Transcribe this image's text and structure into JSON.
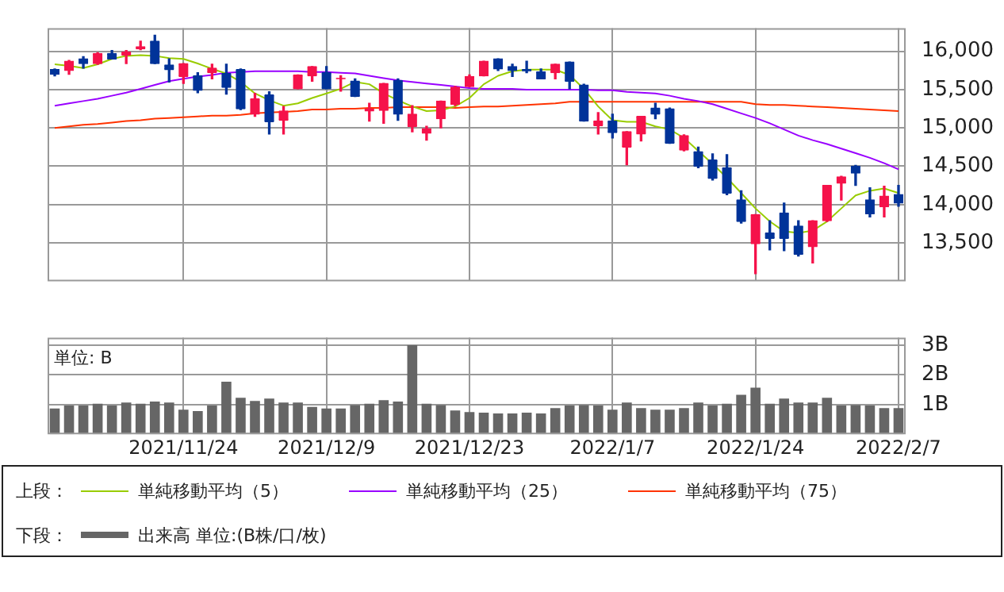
{
  "chart_data": [
    {
      "type": "candlestick",
      "legend_title": "上段：",
      "legend": "bottom",
      "grid": true,
      "tick_labels": "y",
      "marker": "none",
      "categories": [
        null,
        null,
        null,
        null,
        null,
        null,
        null,
        null,
        null,
        "2021/11/24",
        null,
        null,
        null,
        null,
        null,
        null,
        null,
        null,
        null,
        "2021/12/9",
        null,
        null,
        null,
        null,
        null,
        null,
        null,
        null,
        null,
        "2021/12/23",
        null,
        null,
        null,
        null,
        null,
        null,
        null,
        null,
        null,
        "2022/1/7",
        null,
        null,
        null,
        null,
        null,
        null,
        null,
        null,
        null,
        "2022/1/24",
        null,
        null,
        null,
        null,
        null,
        null,
        null,
        null,
        null,
        "2022/2/7"
      ],
      "ylim": [
        13000,
        16300
      ],
      "yticks": [
        {
          "value": 13500,
          "label": "13,500"
        },
        {
          "value": 14000,
          "label": "14,000"
        },
        {
          "value": 14500,
          "label": "14,500"
        },
        {
          "value": 15000,
          "label": "15,000"
        },
        {
          "value": 15500,
          "label": "15,500"
        },
        {
          "value": 16000,
          "label": "16,000"
        }
      ],
      "ohlc": [
        [
          15760,
          15770,
          15680,
          15700
        ],
        [
          15750,
          15880,
          15700,
          15870
        ],
        [
          15900,
          15930,
          15780,
          15840
        ],
        [
          15840,
          15980,
          15830,
          15970
        ],
        [
          15970,
          16010,
          15900,
          15900
        ],
        [
          15950,
          16010,
          15840,
          15990
        ],
        [
          16030,
          16130,
          16020,
          16060
        ],
        [
          16130,
          16210,
          15840,
          15840
        ],
        [
          15820,
          15900,
          15600,
          15760
        ],
        [
          15670,
          15840,
          15580,
          15840
        ],
        [
          15680,
          15720,
          15460,
          15490
        ],
        [
          15720,
          15830,
          15640,
          15780
        ],
        [
          15710,
          15830,
          15440,
          15530
        ],
        [
          15760,
          15770,
          15240,
          15250
        ],
        [
          15180,
          15450,
          15150,
          15380
        ],
        [
          15430,
          15470,
          14920,
          15080
        ],
        [
          15100,
          15280,
          14920,
          15220
        ],
        [
          15510,
          15690,
          15510,
          15690
        ],
        [
          15680,
          15800,
          15610,
          15800
        ],
        [
          15720,
          15800,
          15510,
          15510
        ],
        [
          15640,
          15680,
          15480,
          15650
        ],
        [
          15610,
          15640,
          15410,
          15410
        ],
        [
          15220,
          15320,
          15090,
          15250
        ],
        [
          15230,
          15580,
          15060,
          15580
        ],
        [
          15620,
          15640,
          15100,
          15180
        ],
        [
          15020,
          15290,
          14950,
          15180
        ],
        [
          14930,
          15020,
          14840,
          14990
        ],
        [
          15120,
          15350,
          15000,
          15350
        ],
        [
          15310,
          15540,
          15290,
          15530
        ],
        [
          15540,
          15690,
          15540,
          15670
        ],
        [
          15680,
          15870,
          15680,
          15870
        ],
        [
          15900,
          15900,
          15750,
          15770
        ],
        [
          15800,
          15830,
          15670,
          15750
        ],
        [
          15760,
          15870,
          15720,
          15740
        ],
        [
          15730,
          15770,
          15640,
          15640
        ],
        [
          15720,
          15830,
          15640,
          15830
        ],
        [
          15860,
          15860,
          15510,
          15610
        ],
        [
          15560,
          15570,
          15090,
          15090
        ],
        [
          15030,
          15200,
          14920,
          15090
        ],
        [
          15090,
          15180,
          14870,
          14940
        ],
        [
          14750,
          14950,
          14520,
          14950
        ],
        [
          14920,
          15150,
          14830,
          15150
        ],
        [
          15260,
          15320,
          15120,
          15180
        ],
        [
          15250,
          15260,
          14800,
          14800
        ],
        [
          14710,
          14910,
          14700,
          14900
        ],
        [
          14690,
          14750,
          14480,
          14500
        ],
        [
          14580,
          14660,
          14320,
          14340
        ],
        [
          14480,
          14650,
          14130,
          14150
        ],
        [
          14060,
          14180,
          13760,
          13780
        ],
        [
          13490,
          13870,
          13100,
          13870
        ],
        [
          13630,
          13790,
          13410,
          13560
        ],
        [
          13890,
          14020,
          13400,
          13560
        ],
        [
          13720,
          13790,
          13330,
          13350
        ],
        [
          13450,
          13790,
          13240,
          13790
        ],
        [
          13790,
          14250,
          13780,
          14250
        ],
        [
          14280,
          14370,
          14060,
          14360
        ],
        [
          14500,
          14510,
          14250,
          14410
        ],
        [
          14060,
          14220,
          13840,
          13880
        ],
        [
          13970,
          14240,
          13840,
          14110
        ],
        [
          14130,
          14250,
          13980,
          14020
        ]
      ],
      "colors": [
        "#003399",
        "#f5124a",
        "#003399",
        "#f5124a",
        "#003399",
        "#f5124a",
        "#f5124a",
        "#003399",
        "#003399",
        "#f5124a",
        "#003399",
        "#f5124a",
        "#003399",
        "#003399",
        "#f5124a",
        "#003399",
        "#f5124a",
        "#f5124a",
        "#f5124a",
        "#003399",
        "#f5124a",
        "#003399",
        "#f5124a",
        "#f5124a",
        "#003399",
        "#f5124a",
        "#f5124a",
        "#f5124a",
        "#f5124a",
        "#f5124a",
        "#f5124a",
        "#003399",
        "#003399",
        "#003399",
        "#003399",
        "#f5124a",
        "#003399",
        "#003399",
        "#f5124a",
        "#003399",
        "#f5124a",
        "#f5124a",
        "#003399",
        "#003399",
        "#f5124a",
        "#003399",
        "#003399",
        "#003399",
        "#003399",
        "#f5124a",
        "#003399",
        "#003399",
        "#003399",
        "#f5124a",
        "#f5124a",
        "#f5124a",
        "#003399",
        "#003399",
        "#f5124a",
        "#003399"
      ],
      "series": [
        {
          "type": "line",
          "name": "単純移動平均（5）",
          "color": "#99cc00",
          "values": [
            15830,
            15810,
            15780,
            15830,
            15900,
            15940,
            15950,
            15940,
            15910,
            15900,
            15840,
            15770,
            15710,
            15600,
            15450,
            15360,
            15290,
            15320,
            15390,
            15450,
            15510,
            15600,
            15570,
            15450,
            15360,
            15280,
            15220,
            15230,
            15280,
            15390,
            15570,
            15680,
            15740,
            15760,
            15760,
            15760,
            15690,
            15510,
            15280,
            15100,
            15080,
            15080,
            15020,
            14980,
            14870,
            14700,
            14530,
            14350,
            14150,
            13950,
            13780,
            13650,
            13630,
            13660,
            13780,
            13950,
            14120,
            14180,
            14210,
            14150
          ]
        },
        {
          "type": "line",
          "name": "単純移動平均（25）",
          "color": "#9900ff",
          "values": [
            15290,
            15320,
            15350,
            15380,
            15420,
            15460,
            15510,
            15560,
            15610,
            15640,
            15670,
            15690,
            15720,
            15730,
            15740,
            15740,
            15740,
            15740,
            15730,
            15730,
            15720,
            15710,
            15680,
            15650,
            15620,
            15600,
            15580,
            15560,
            15540,
            15520,
            15510,
            15510,
            15510,
            15500,
            15500,
            15500,
            15500,
            15500,
            15490,
            15490,
            15470,
            15460,
            15450,
            15420,
            15380,
            15350,
            15310,
            15250,
            15190,
            15130,
            15060,
            14980,
            14900,
            14840,
            14790,
            14730,
            14670,
            14610,
            14540,
            14460
          ]
        },
        {
          "type": "line",
          "name": "単純移動平均（75）",
          "color": "#ff3300",
          "values": [
            15000,
            15020,
            15040,
            15050,
            15070,
            15090,
            15100,
            15120,
            15130,
            15140,
            15150,
            15160,
            15160,
            15170,
            15190,
            15200,
            15210,
            15220,
            15240,
            15240,
            15250,
            15250,
            15260,
            15260,
            15270,
            15270,
            15270,
            15270,
            15260,
            15270,
            15280,
            15280,
            15290,
            15300,
            15310,
            15320,
            15340,
            15340,
            15340,
            15340,
            15340,
            15340,
            15340,
            15340,
            15340,
            15340,
            15340,
            15340,
            15340,
            15310,
            15300,
            15300,
            15290,
            15280,
            15270,
            15260,
            15250,
            15240,
            15230,
            15220
          ]
        }
      ]
    },
    {
      "type": "bar",
      "legend_title": "下段：",
      "legend": "bottom",
      "grid": true,
      "annotations": [
        "単位: B"
      ],
      "categories": [
        null,
        null,
        null,
        null,
        null,
        null,
        null,
        null,
        null,
        "2021/11/24",
        null,
        null,
        null,
        null,
        null,
        null,
        null,
        null,
        null,
        "2021/12/9",
        null,
        null,
        null,
        null,
        null,
        null,
        null,
        null,
        null,
        "2021/12/23",
        null,
        null,
        null,
        null,
        null,
        null,
        null,
        null,
        null,
        "2022/1/7",
        null,
        null,
        null,
        null,
        null,
        null,
        null,
        null,
        null,
        "2022/1/24",
        null,
        null,
        null,
        null,
        null,
        null,
        null,
        null,
        null,
        "2022/2/7"
      ],
      "ylim": [
        0,
        3.25
      ],
      "yticks": [
        {
          "value": 1,
          "label": "1B"
        },
        {
          "value": 2,
          "label": "2B"
        },
        {
          "value": 3,
          "label": "3B"
        }
      ],
      "series": [
        {
          "name": "出来高 単位:(B株/口/枚)",
          "color": "#666666",
          "values": [
            0.87,
            0.97,
            0.97,
            1.03,
            0.97,
            1.07,
            1.03,
            1.1,
            1.07,
            0.83,
            0.78,
            0.97,
            1.77,
            1.23,
            1.12,
            1.2,
            1.07,
            1.07,
            0.92,
            0.87,
            0.87,
            0.98,
            1.03,
            1.15,
            1.1,
            3.0,
            1.03,
            0.98,
            0.8,
            0.75,
            0.73,
            0.7,
            0.7,
            0.73,
            0.7,
            0.88,
            0.97,
            0.98,
            0.97,
            0.83,
            1.07,
            0.88,
            0.83,
            0.83,
            0.88,
            1.07,
            0.97,
            1.03,
            1.33,
            1.57,
            1.03,
            1.2,
            1.07,
            1.07,
            1.23,
            0.97,
            0.98,
            0.97,
            0.88,
            0.88
          ]
        }
      ]
    }
  ]
}
